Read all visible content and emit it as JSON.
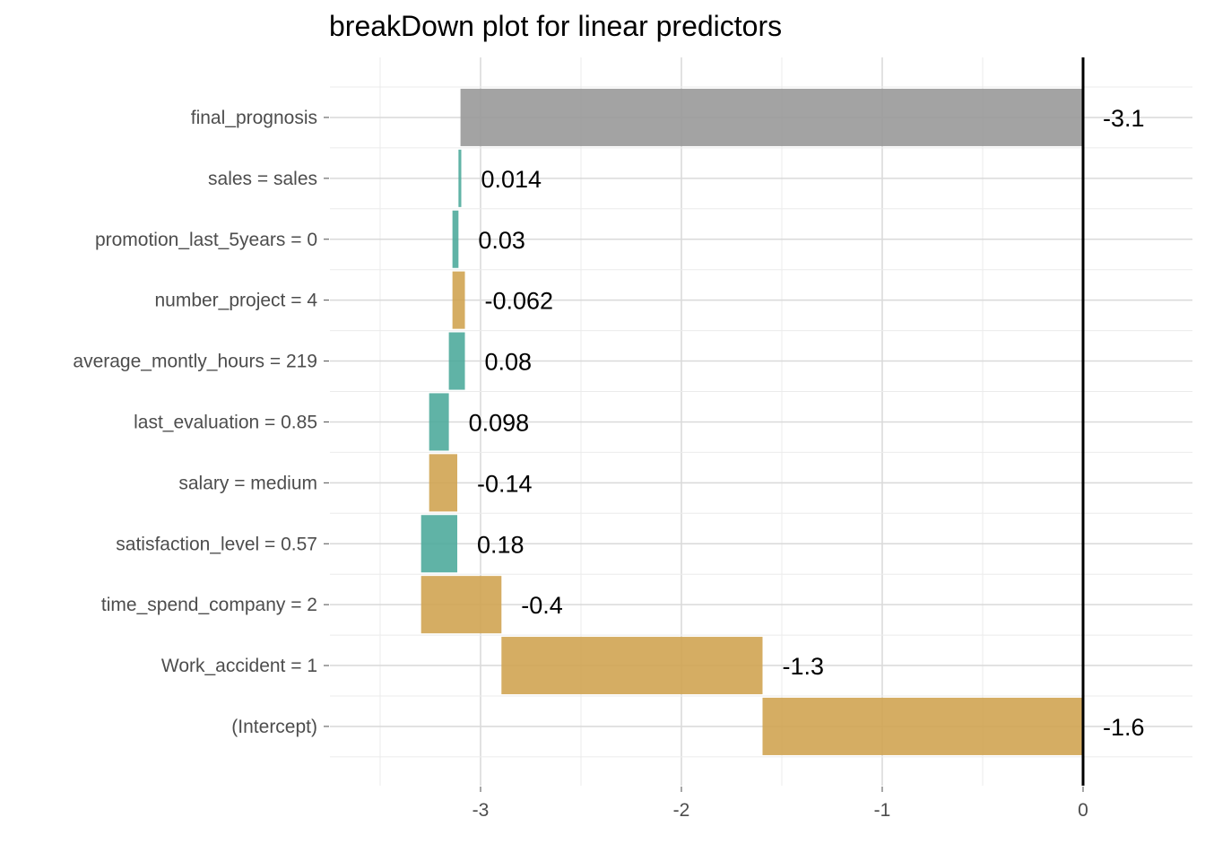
{
  "chart_data": {
    "type": "bar",
    "orientation": "horizontal",
    "subtype": "waterfall",
    "title": "breakDown plot for linear predictors",
    "xlabel": "",
    "ylabel": "",
    "xlim": [
      -3.75,
      0.5
    ],
    "xticks": [
      -3,
      -2,
      -1,
      0
    ],
    "xtick_labels": [
      "-3",
      "-2",
      "-1",
      "0"
    ],
    "grid": true,
    "reference_line": 0,
    "colors": {
      "positive": "#4aa89a",
      "negative": "#cfa24d",
      "final": "#999999"
    },
    "bars": [
      {
        "variable": "final_prognosis",
        "label": "-3.1",
        "start": -3.1,
        "end": 0.0,
        "kind": "final"
      },
      {
        "variable": "sales = sales",
        "label": "0.014",
        "start": -3.11,
        "end": -3.096,
        "kind": "positive"
      },
      {
        "variable": "promotion_last_5years = 0",
        "label": "0.03",
        "start": -3.14,
        "end": -3.11,
        "kind": "positive"
      },
      {
        "variable": "number_project = 4",
        "label": "-0.062",
        "start": -3.14,
        "end": -3.078,
        "kind": "negative"
      },
      {
        "variable": "average_montly_hours = 219",
        "label": "0.08",
        "start": -3.158,
        "end": -3.078,
        "kind": "positive"
      },
      {
        "variable": "last_evaluation = 0.85",
        "label": "0.098",
        "start": -3.256,
        "end": -3.158,
        "kind": "positive"
      },
      {
        "variable": "salary = medium",
        "label": "-0.14",
        "start": -3.256,
        "end": -3.116,
        "kind": "negative"
      },
      {
        "variable": "satisfaction_level = 0.57",
        "label": "0.18",
        "start": -3.296,
        "end": -3.116,
        "kind": "positive"
      },
      {
        "variable": "time_spend_company = 2",
        "label": "-0.4",
        "start": -3.296,
        "end": -2.896,
        "kind": "negative"
      },
      {
        "variable": "Work_accident = 1",
        "label": "-1.3",
        "start": -2.896,
        "end": -1.596,
        "kind": "negative"
      },
      {
        "variable": "(Intercept)",
        "label": "-1.6",
        "start": -1.596,
        "end": 0.0,
        "kind": "negative"
      }
    ]
  }
}
